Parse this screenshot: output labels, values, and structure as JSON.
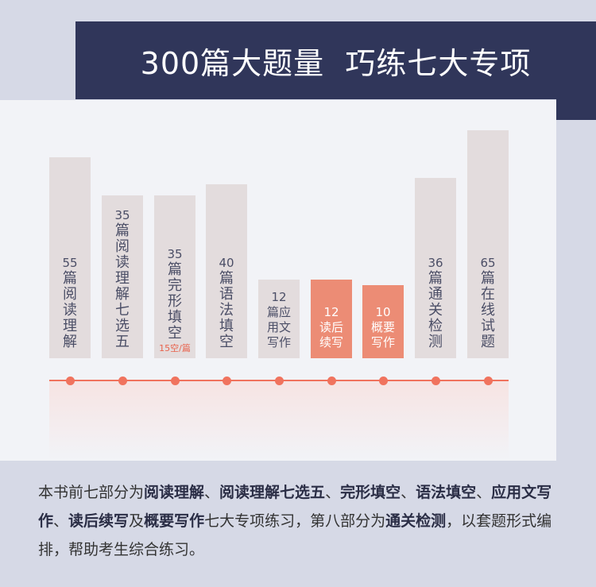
{
  "banner": {
    "title": "300篇大题量  巧练七大专项"
  },
  "bars": [
    {
      "num": "55",
      "text": "篇阅读理解",
      "note": ""
    },
    {
      "num": "35",
      "text": "篇阅读理解七选五",
      "note": ""
    },
    {
      "num": "35",
      "text": "篇完形填空",
      "note": "15空/篇"
    },
    {
      "num": "40",
      "text": "篇语法填空",
      "note": ""
    },
    {
      "num": "12",
      "text": "篇应用文写作",
      "note": ""
    },
    {
      "num": "12",
      "text": "读后续写",
      "note": ""
    },
    {
      "num": "10",
      "text": "概要写作",
      "note": ""
    },
    {
      "num": "36",
      "text": "篇通关检测",
      "note": ""
    },
    {
      "num": "65",
      "text": "篇在线试题",
      "note": ""
    }
  ],
  "colors": {
    "banner": "#30365a",
    "bar": "#e3dcdd",
    "highlight": "#ec8c75",
    "axis": "#f0735e"
  },
  "description": {
    "s1": "本书前七部分为",
    "b1": "阅读理解",
    "s2": "、",
    "b2": "阅读理解七选五",
    "s3": "、",
    "b3": "完形填空",
    "s4": "、",
    "b4": "语法填空",
    "s5": "、",
    "b5": "应用文写作",
    "s6": "、",
    "b6": "读后续写",
    "s7": "及",
    "b7": "概要写作",
    "s8": "七大专项练习，第八部分为",
    "b8": "通关检测",
    "s9": "，以套题形式编排，帮助考生综合练习。"
  }
}
